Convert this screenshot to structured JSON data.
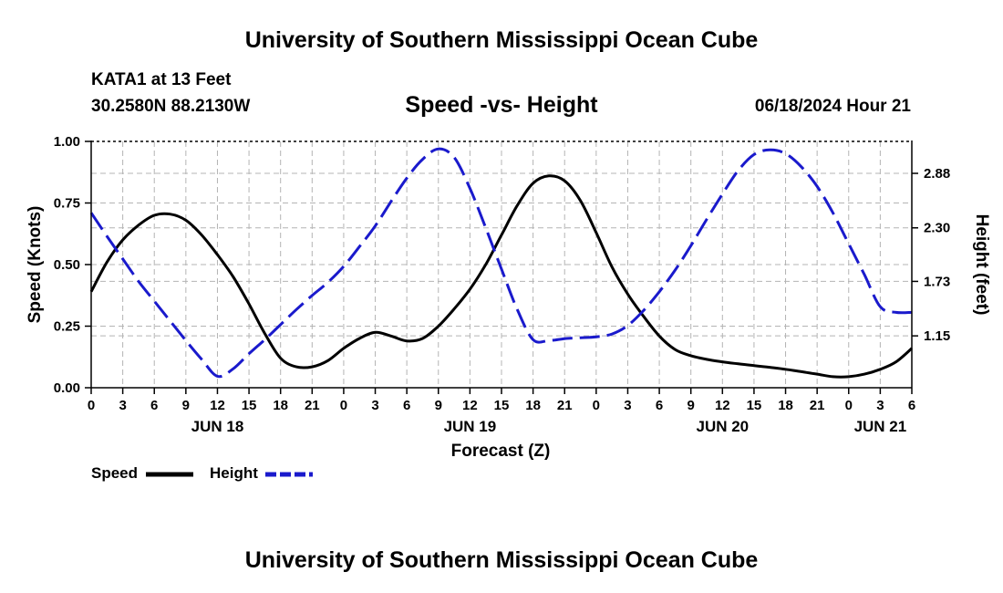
{
  "header": {
    "title": "University of Southern Mississippi Ocean Cube",
    "station": "KATA1 at 13 Feet",
    "coords": "30.2580N  88.2130W",
    "subtitle": "Speed -vs- Height",
    "datetime": "06/18/2024 Hour 21"
  },
  "footer": {
    "title": "University of Southern Mississippi Ocean Cube"
  },
  "legend": {
    "speed_label": "Speed",
    "height_label": "Height"
  },
  "colors": {
    "speed": "#000000",
    "height": "#1a1acc",
    "grid": "#b4b4b4"
  },
  "chart_data": {
    "type": "line",
    "title": "Speed -vs- Height",
    "xlabel": "Forecast (Z)",
    "ylabel": "Speed (Knots)",
    "y2label": "Height (feet)",
    "xlim": [
      0,
      78
    ],
    "ylim": [
      0,
      1
    ],
    "y2lim": [
      0.598,
      3.22
    ],
    "x_ticks": [
      0,
      3,
      6,
      9,
      12,
      15,
      18,
      21,
      24,
      27,
      30,
      33,
      36,
      39,
      42,
      45,
      48,
      51,
      54,
      57,
      60,
      63,
      66,
      69,
      72,
      75,
      78
    ],
    "x_tick_labels": [
      "0",
      "3",
      "6",
      "9",
      "12",
      "15",
      "18",
      "21",
      "0",
      "3",
      "6",
      "9",
      "12",
      "15",
      "18",
      "21",
      "0",
      "3",
      "6",
      "9",
      "12",
      "15",
      "18",
      "21",
      "0",
      "3",
      "6"
    ],
    "date_labels": [
      {
        "x": 12,
        "label": "JUN 18"
      },
      {
        "x": 36,
        "label": "JUN 19"
      },
      {
        "x": 60,
        "label": "JUN 20"
      },
      {
        "x": 75,
        "label": "JUN 21"
      }
    ],
    "y_ticks": [
      0,
      0.25,
      0.5,
      0.75,
      1.0
    ],
    "y_tick_labels": [
      "0.00",
      "0.25",
      "0.50",
      "0.75",
      "1.00"
    ],
    "y2_ticks": [
      1.15,
      1.73,
      2.3,
      2.88
    ],
    "y2_tick_labels": [
      "1.15",
      "1.73",
      "2.30",
      "2.88"
    ],
    "grid": true,
    "series": [
      {
        "name": "Speed",
        "axis": "left",
        "style": "solid",
        "x": [
          0,
          1.5,
          3,
          4.5,
          6,
          7.5,
          9,
          10.5,
          12,
          13.5,
          15,
          16.5,
          18,
          19.5,
          21,
          22.5,
          24,
          25.5,
          27,
          28.5,
          30,
          31.5,
          33,
          34.5,
          36,
          37.5,
          39,
          40.5,
          42,
          43.5,
          45,
          46.5,
          48,
          49.5,
          51,
          52.5,
          54,
          55.5,
          57,
          58.5,
          60,
          61.5,
          63,
          64.5,
          66,
          67.5,
          69,
          70.5,
          72,
          73.5,
          75,
          76.5,
          78
        ],
        "values": [
          0.39,
          0.51,
          0.6,
          0.66,
          0.7,
          0.705,
          0.68,
          0.62,
          0.54,
          0.45,
          0.34,
          0.22,
          0.12,
          0.085,
          0.085,
          0.11,
          0.16,
          0.2,
          0.225,
          0.21,
          0.19,
          0.2,
          0.25,
          0.32,
          0.4,
          0.5,
          0.62,
          0.74,
          0.83,
          0.86,
          0.84,
          0.76,
          0.63,
          0.49,
          0.38,
          0.29,
          0.21,
          0.155,
          0.13,
          0.115,
          0.105,
          0.097,
          0.09,
          0.083,
          0.075,
          0.065,
          0.055,
          0.045,
          0.045,
          0.055,
          0.075,
          0.105,
          0.16
        ]
      },
      {
        "name": "Speed",
        "axis": "left",
        "style": "solid",
        "segment_note": "continuation",
        "x": [
          72,
          73.5,
          75,
          76.5,
          78
        ],
        "values": [
          0.045,
          0.055,
          0.075,
          0.105,
          0.16
        ]
      },
      {
        "name": "Height",
        "axis": "right",
        "style": "dashed",
        "x": [
          0,
          1.5,
          3,
          4.5,
          6,
          7.5,
          9,
          10.5,
          12,
          13.5,
          15,
          16.5,
          18,
          19.5,
          21,
          22.5,
          24,
          25.5,
          27,
          28.5,
          30,
          31.5,
          33,
          34.5,
          36,
          37.5,
          39,
          40.5,
          42,
          43.5,
          45,
          46.5,
          48,
          49.5,
          51,
          52.5,
          54,
          55.5,
          57,
          58.5,
          60,
          61.5,
          63,
          64.5,
          66,
          67.5,
          69,
          70.5,
          72,
          73.5,
          75,
          76.5,
          78
        ],
        "values": [
          2.46,
          2.21,
          1.97,
          1.73,
          1.52,
          1.31,
          1.1,
          0.9,
          0.72,
          0.8,
          0.96,
          1.11,
          1.27,
          1.43,
          1.58,
          1.72,
          1.89,
          2.1,
          2.32,
          2.58,
          2.83,
          3.03,
          3.14,
          3.05,
          2.72,
          2.3,
          1.86,
          1.43,
          1.11,
          1.1,
          1.12,
          1.13,
          1.14,
          1.17,
          1.26,
          1.42,
          1.62,
          1.85,
          2.11,
          2.39,
          2.66,
          2.91,
          3.08,
          3.13,
          3.09,
          2.95,
          2.74,
          2.46,
          2.13,
          1.8,
          1.46,
          1.4,
          1.4
        ]
      }
    ]
  },
  "axes_text": {
    "xlabel": "Forecast (Z)",
    "ylabel": "Speed (Knots)",
    "y2label": "Height (feet)"
  }
}
